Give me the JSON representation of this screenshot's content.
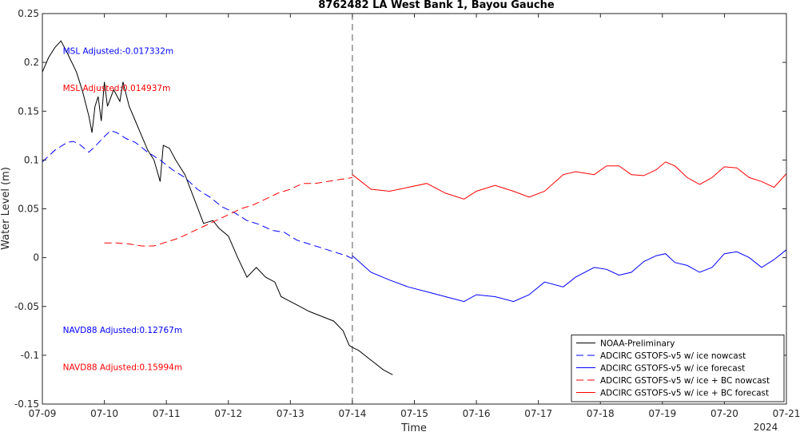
{
  "chart_data": {
    "type": "line",
    "title": "8762482 LA West Bank 1, Bayou Gauche",
    "xlabel": "Time",
    "ylabel": "Water Level (m)",
    "year_label": "2024",
    "xlim": [
      0,
      12
    ],
    "ylim": [
      -0.15,
      0.25
    ],
    "x_ticks": [
      {
        "x": 0,
        "label": "07-09"
      },
      {
        "x": 1,
        "label": "07-10"
      },
      {
        "x": 2,
        "label": "07-11"
      },
      {
        "x": 3,
        "label": "07-12"
      },
      {
        "x": 4,
        "label": "07-13"
      },
      {
        "x": 5,
        "label": "07-14"
      },
      {
        "x": 6,
        "label": "07-15"
      },
      {
        "x": 7,
        "label": "07-16"
      },
      {
        "x": 8,
        "label": "07-17"
      },
      {
        "x": 9,
        "label": "07-18"
      },
      {
        "x": 10,
        "label": "07-19"
      },
      {
        "x": 11,
        "label": "07-20"
      },
      {
        "x": 12,
        "label": "07-21"
      }
    ],
    "y_ticks": [
      {
        "y": 0.25,
        "label": "0.25"
      },
      {
        "y": 0.2,
        "label": "0.2"
      },
      {
        "y": 0.15,
        "label": "0.15"
      },
      {
        "y": 0.1,
        "label": "0.1"
      },
      {
        "y": 0.05,
        "label": "0.05"
      },
      {
        "y": 0,
        "label": "0"
      },
      {
        "y": -0.05,
        "label": "-0.05"
      },
      {
        "y": -0.1,
        "label": "-0.1"
      },
      {
        "y": -0.15,
        "label": "-0.15"
      }
    ],
    "vline_x": 5,
    "legend_position": "bottom-right",
    "annotations": [
      {
        "text": "MSL Adjusted:-0.017332m",
        "color": "#0000ff",
        "x": 0.33,
        "y": 0.212
      },
      {
        "text": "MSL Adjusted:0.014937m",
        "color": "#ff0000",
        "x": 0.33,
        "y": 0.174
      },
      {
        "text": "NAVD88 Adjusted:0.12767m",
        "color": "#0000ff",
        "x": 0.33,
        "y": -0.074
      },
      {
        "text": "NAVD88 Adjusted:0.15994m",
        "color": "#ff0000",
        "x": 0.33,
        "y": -0.112
      }
    ],
    "series": [
      {
        "name": "NOAA-Preliminary",
        "color": "#000000",
        "dash": "solid",
        "x": [
          0,
          0.1,
          0.2,
          0.3,
          0.4,
          0.55,
          0.65,
          0.75,
          0.8,
          0.85,
          0.9,
          0.95,
          1.0,
          1.05,
          1.15,
          1.25,
          1.3,
          1.4,
          1.5,
          1.6,
          1.7,
          1.8,
          1.9,
          1.95,
          2.05,
          2.15,
          2.3,
          2.45,
          2.6,
          2.75,
          2.85,
          3.0,
          3.15,
          3.3,
          3.45,
          3.6,
          3.75,
          3.85,
          4.0,
          4.15,
          4.3,
          4.5,
          4.7,
          4.85,
          4.95,
          5.0,
          5.1,
          5.3,
          5.5,
          5.65
        ],
        "y": [
          0.19,
          0.205,
          0.215,
          0.222,
          0.21,
          0.19,
          0.17,
          0.145,
          0.128,
          0.155,
          0.165,
          0.14,
          0.18,
          0.155,
          0.172,
          0.16,
          0.18,
          0.155,
          0.14,
          0.125,
          0.11,
          0.1,
          0.078,
          0.115,
          0.112,
          0.1,
          0.085,
          0.06,
          0.035,
          0.038,
          0.03,
          0.022,
          0.0,
          -0.02,
          -0.01,
          -0.02,
          -0.025,
          -0.04,
          -0.045,
          -0.05,
          -0.055,
          -0.06,
          -0.065,
          -0.075,
          -0.09,
          -0.092,
          -0.095,
          -0.105,
          -0.115,
          -0.12
        ]
      },
      {
        "name": "ADCIRC GSTOFS-v5 w/ ice nowcast",
        "color": "#0000ff",
        "dash": "dashed",
        "x": [
          0,
          0.2,
          0.4,
          0.5,
          0.6,
          0.75,
          0.85,
          1.0,
          1.1,
          1.2,
          1.35,
          1.5,
          1.7,
          1.9,
          2.1,
          2.3,
          2.5,
          2.7,
          2.9,
          3.1,
          3.3,
          3.5,
          3.7,
          3.9,
          4.1,
          4.3,
          4.5,
          4.7,
          4.9,
          5.0
        ],
        "y": [
          0.098,
          0.11,
          0.118,
          0.119,
          0.116,
          0.108,
          0.114,
          0.124,
          0.13,
          0.128,
          0.122,
          0.118,
          0.108,
          0.1,
          0.09,
          0.082,
          0.07,
          0.062,
          0.052,
          0.046,
          0.038,
          0.034,
          0.028,
          0.026,
          0.018,
          0.014,
          0.01,
          0.006,
          0.002,
          -0.001
        ]
      },
      {
        "name": "ADCIRC GSTOFS-v5 w/ ice forecast",
        "color": "#0000ff",
        "dash": "solid",
        "x": [
          5.0,
          5.3,
          5.6,
          5.9,
          6.2,
          6.5,
          6.8,
          7.0,
          7.3,
          7.6,
          7.85,
          8.1,
          8.4,
          8.6,
          8.9,
          9.1,
          9.3,
          9.5,
          9.7,
          9.9,
          10.05,
          10.2,
          10.4,
          10.6,
          10.8,
          11.0,
          11.2,
          11.4,
          11.6,
          11.8,
          12.0
        ],
        "y": [
          0.002,
          -0.015,
          -0.023,
          -0.03,
          -0.035,
          -0.04,
          -0.045,
          -0.038,
          -0.04,
          -0.045,
          -0.038,
          -0.025,
          -0.03,
          -0.02,
          -0.01,
          -0.012,
          -0.018,
          -0.015,
          -0.004,
          0.002,
          0.004,
          -0.005,
          -0.008,
          -0.015,
          -0.01,
          0.004,
          0.006,
          0.0,
          -0.01,
          -0.002,
          0.008
        ]
      },
      {
        "name": "ADCIRC GSTOFS-v5 w/ ice + BC nowcast",
        "color": "#ff0000",
        "dash": "dashed",
        "x": [
          1.0,
          1.2,
          1.4,
          1.6,
          1.8,
          2.0,
          2.2,
          2.4,
          2.6,
          2.8,
          3.0,
          3.2,
          3.4,
          3.6,
          3.8,
          4.0,
          4.2,
          4.4,
          4.6,
          4.8,
          5.0
        ],
        "y": [
          0.015,
          0.015,
          0.014,
          0.012,
          0.012,
          0.016,
          0.02,
          0.026,
          0.032,
          0.038,
          0.044,
          0.05,
          0.054,
          0.06,
          0.066,
          0.07,
          0.076,
          0.076,
          0.078,
          0.08,
          0.082
        ]
      },
      {
        "name": "ADCIRC GSTOFS-v5 w/ ice + BC forecast",
        "color": "#ff0000",
        "dash": "solid",
        "x": [
          5.0,
          5.3,
          5.6,
          5.9,
          6.2,
          6.5,
          6.8,
          7.0,
          7.3,
          7.6,
          7.85,
          8.1,
          8.4,
          8.6,
          8.9,
          9.1,
          9.3,
          9.5,
          9.7,
          9.9,
          10.05,
          10.2,
          10.4,
          10.6,
          10.8,
          11.0,
          11.2,
          11.4,
          11.6,
          11.8,
          12.0
        ],
        "y": [
          0.085,
          0.07,
          0.068,
          0.072,
          0.076,
          0.066,
          0.06,
          0.068,
          0.074,
          0.068,
          0.062,
          0.068,
          0.085,
          0.088,
          0.085,
          0.094,
          0.094,
          0.085,
          0.084,
          0.09,
          0.098,
          0.094,
          0.082,
          0.075,
          0.082,
          0.093,
          0.092,
          0.082,
          0.078,
          0.072,
          0.086
        ]
      }
    ]
  }
}
